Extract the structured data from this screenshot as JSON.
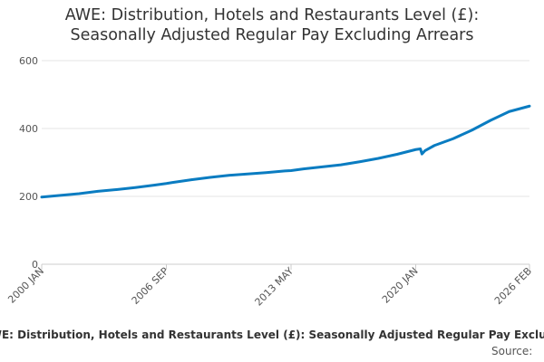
{
  "title": {
    "line1": "AWE: Distribution, Hotels and Restaurants Level (£):",
    "line2": "Seasonally Adjusted Regular Pay Excluding Arrears"
  },
  "legend_label": "AWE: Distribution, Hotels and Restaurants Level (£): Seasonally Adjusted Regular Pay Excluding Arrears",
  "source_label": "Source:",
  "colors": {
    "series": "#0a7cc1",
    "grid": "#e6e6e6",
    "axis": "#cccccc",
    "text": "#333333"
  },
  "chart_data": {
    "type": "line",
    "title": "AWE: Distribution, Hotels and Restaurants Level (£): Seasonally Adjusted Regular Pay Excluding Arrears",
    "xlabel": "",
    "ylabel": "",
    "ylim": [
      0,
      600
    ],
    "yticks": [
      0,
      200,
      400,
      600
    ],
    "xticks": [
      "2000 JAN",
      "2006 SEP",
      "2013 MAY",
      "2020 JAN",
      "2026 FEB"
    ],
    "grid": true,
    "legend": "bottom",
    "series": [
      {
        "name": "AWE: Distribution, Hotels and Restaurants Level (£): Seasonally Adjusted Regular Pay Excluding Arrears",
        "points": [
          [
            "2000 JAN",
            198
          ],
          [
            "2001 JAN",
            203
          ],
          [
            "2002 JAN",
            208
          ],
          [
            "2003 JAN",
            215
          ],
          [
            "2004 JAN",
            220
          ],
          [
            "2005 JAN",
            226
          ],
          [
            "2006 JAN",
            233
          ],
          [
            "2006 SEP",
            238
          ],
          [
            "2007 JAN",
            241
          ],
          [
            "2008 JAN",
            249
          ],
          [
            "2009 JAN",
            256
          ],
          [
            "2010 JAN",
            262
          ],
          [
            "2011 JAN",
            266
          ],
          [
            "2012 JAN",
            270
          ],
          [
            "2013 JAN",
            275
          ],
          [
            "2013 MAY",
            276
          ],
          [
            "2014 JAN",
            281
          ],
          [
            "2015 JAN",
            287
          ],
          [
            "2016 JAN",
            293
          ],
          [
            "2017 JAN",
            302
          ],
          [
            "2018 JAN",
            312
          ],
          [
            "2019 JAN",
            324
          ],
          [
            "2020 JAN",
            338
          ],
          [
            "2020 APR",
            340
          ],
          [
            "2020 MAY",
            325
          ],
          [
            "2020 JUL",
            335
          ],
          [
            "2021 JAN",
            350
          ],
          [
            "2022 JAN",
            370
          ],
          [
            "2023 JAN",
            395
          ],
          [
            "2024 JAN",
            424
          ],
          [
            "2025 JAN",
            450
          ],
          [
            "2026 FEB",
            466
          ]
        ]
      }
    ]
  }
}
